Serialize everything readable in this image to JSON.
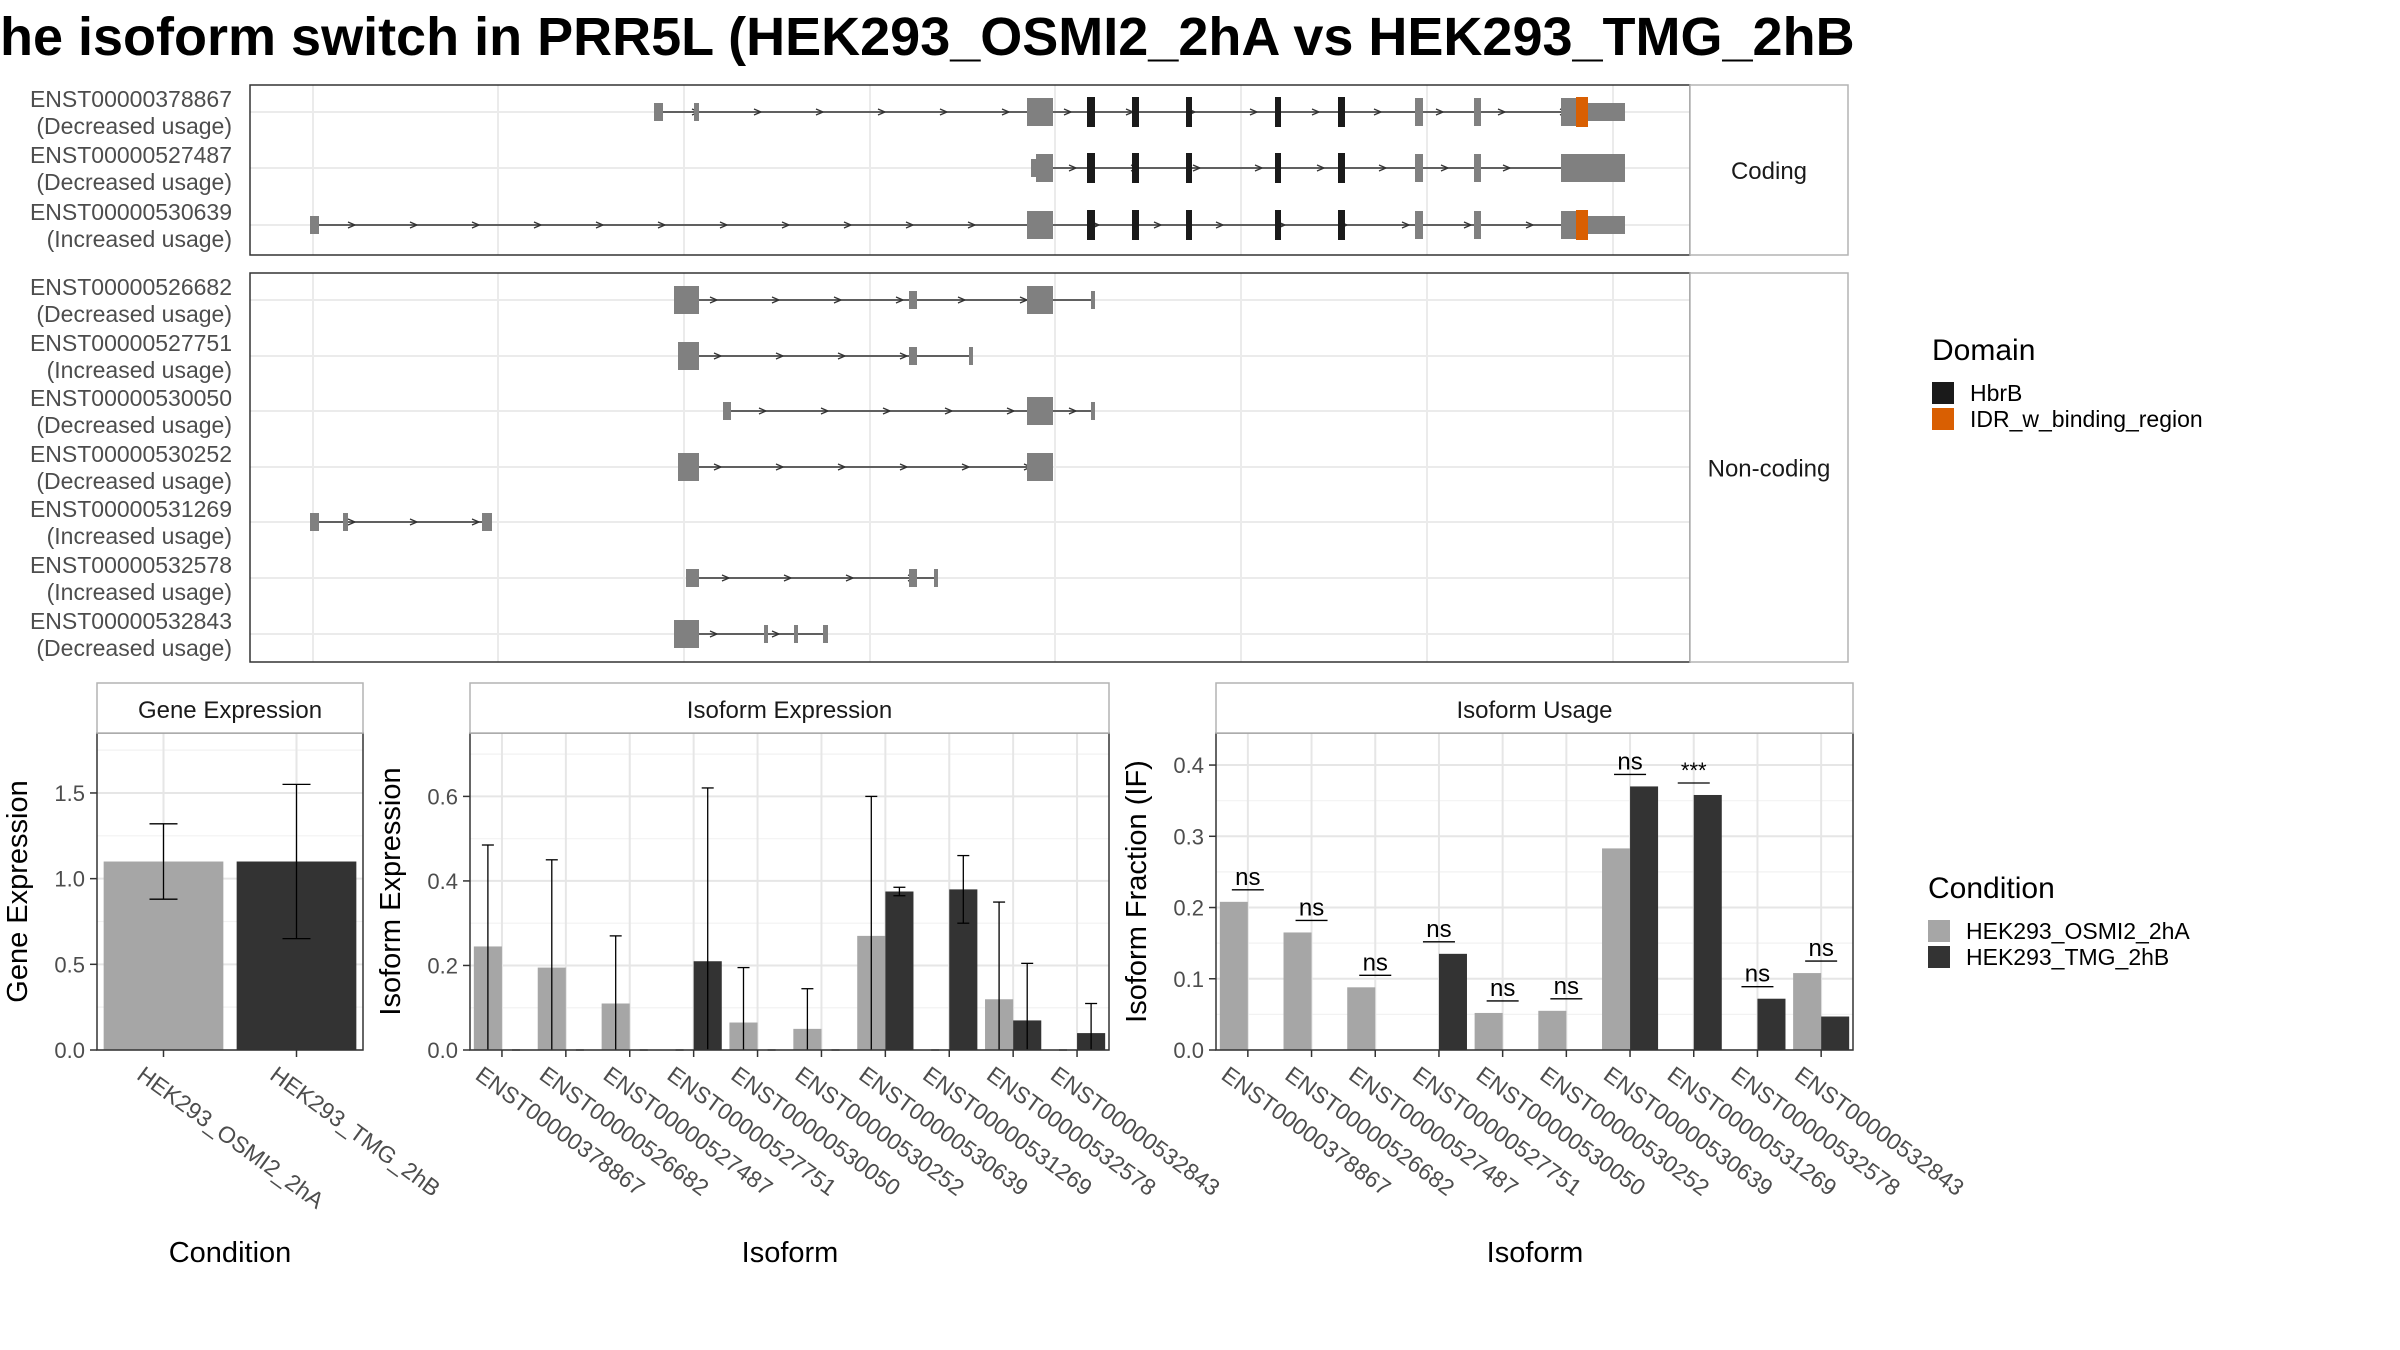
{
  "title": "he isoform switch in PRR5L (HEK293_OSMI2_2hA vs HEK293_TMG_2hB",
  "legend_domain": {
    "title": "Domain",
    "items": [
      {
        "label": "HbrB",
        "color": "#1a1a1a"
      },
      {
        "label": "IDR_w_binding_region",
        "color": "#d95f02"
      }
    ]
  },
  "legend_condition": {
    "title": "Condition",
    "items": [
      {
        "label": "HEK293_OSMI2_2hA",
        "color": "#a6a6a6"
      },
      {
        "label": "HEK293_TMG_2hB",
        "color": "#333333"
      }
    ]
  },
  "structure_panels": [
    {
      "strip_label": "Coding",
      "isoforms": [
        {
          "id": "ENST00000378867",
          "usage": "(Decreased usage)"
        },
        {
          "id": "ENST00000527487",
          "usage": "(Decreased usage)"
        },
        {
          "id": "ENST00000530639",
          "usage": "(Increased usage)"
        }
      ]
    },
    {
      "strip_label": "Non-coding",
      "isoforms": [
        {
          "id": "ENST00000526682",
          "usage": "(Decreased usage)"
        },
        {
          "id": "ENST00000527751",
          "usage": "(Increased usage)"
        },
        {
          "id": "ENST00000530050",
          "usage": "(Decreased usage)"
        },
        {
          "id": "ENST00000530252",
          "usage": "(Decreased usage)"
        },
        {
          "id": "ENST00000531269",
          "usage": "(Increased usage)"
        },
        {
          "id": "ENST00000532578",
          "usage": "(Increased usage)"
        },
        {
          "id": "ENST00000532843",
          "usage": "(Decreased usage)"
        }
      ]
    }
  ],
  "chart_data": [
    {
      "type": "bar",
      "title": "Gene Expression",
      "xlabel": "Condition",
      "ylabel": "Gene Expression",
      "ylim": [
        0,
        1.85
      ],
      "yticks": [
        "0.0",
        "0.5",
        "1.0",
        "1.5"
      ],
      "categories": [
        "HEK293_OSMI2_2hA",
        "HEK293_TMG_2hB"
      ],
      "values": [
        1.1,
        1.1
      ],
      "error_low": [
        0.88,
        0.65
      ],
      "error_high": [
        1.32,
        1.55
      ],
      "colors": [
        "#a6a6a6",
        "#333333"
      ]
    },
    {
      "type": "bar",
      "title": "Isoform Expression",
      "xlabel": "Isoform",
      "ylabel": "Isoform Expression",
      "ylim": [
        0,
        0.75
      ],
      "yticks": [
        "0.0",
        "0.2",
        "0.4",
        "0.6"
      ],
      "categories": [
        "ENST00000378867",
        "ENST00000526682",
        "ENST00000527487",
        "ENST00000527751",
        "ENST00000530050",
        "ENST00000530252",
        "ENST00000530639",
        "ENST00000531269",
        "ENST00000532578",
        "ENST00000532843"
      ],
      "series": [
        {
          "name": "HEK293_OSMI2_2hA",
          "values": [
            0.245,
            0.195,
            0.11,
            0.0,
            0.065,
            0.05,
            0.27,
            0.0,
            0.12,
            0.0
          ],
          "error_low": [
            0.0,
            0.0,
            0.0,
            0.0,
            0.0,
            0.0,
            0.0,
            0.0,
            0.0,
            0.0
          ],
          "error_high": [
            0.485,
            0.45,
            0.27,
            0.0,
            0.195,
            0.145,
            0.6,
            0.0,
            0.35,
            0.0
          ]
        },
        {
          "name": "HEK293_TMG_2hB",
          "values": [
            0.0,
            0.0,
            0.0,
            0.21,
            0.0,
            0.0,
            0.375,
            0.38,
            0.07,
            0.04
          ],
          "error_low": [
            0.0,
            0.0,
            0.0,
            0.0,
            0.0,
            0.0,
            0.365,
            0.3,
            0.0,
            0.0
          ],
          "error_high": [
            0.0,
            0.0,
            0.0,
            0.62,
            0.0,
            0.0,
            0.385,
            0.46,
            0.205,
            0.11
          ]
        }
      ]
    },
    {
      "type": "bar",
      "title": "Isoform Usage",
      "xlabel": "Isoform",
      "ylabel": "Isoform Fraction (IF)",
      "ylim": [
        0,
        0.445
      ],
      "yticks": [
        "0.0",
        "0.1",
        "0.2",
        "0.3",
        "0.4"
      ],
      "categories": [
        "ENST00000378867",
        "ENST00000526682",
        "ENST00000527487",
        "ENST00000527751",
        "ENST00000530050",
        "ENST00000530252",
        "ENST00000530639",
        "ENST00000531269",
        "ENST00000532578",
        "ENST00000532843"
      ],
      "series": [
        {
          "name": "HEK293_OSMI2_2hA",
          "values": [
            0.208,
            0.165,
            0.088,
            0.0,
            0.052,
            0.055,
            0.283,
            0.0,
            0.0,
            0.108
          ]
        },
        {
          "name": "HEK293_TMG_2hB",
          "values": [
            0.0,
            0.0,
            0.0,
            0.135,
            0.0,
            0.0,
            0.37,
            0.358,
            0.072,
            0.047
          ]
        }
      ],
      "significance": [
        "ns",
        "ns",
        "ns",
        "ns",
        "ns",
        "ns",
        "ns",
        "***",
        "ns",
        "ns"
      ]
    }
  ]
}
